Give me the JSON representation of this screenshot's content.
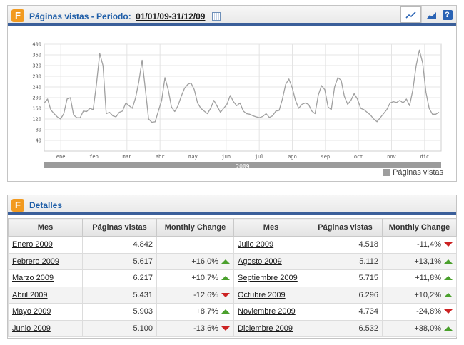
{
  "chart_panel": {
    "title": "Páginas vistas - Periodo:",
    "period": "01/01/09-31/12/09",
    "legend": "Páginas vistas"
  },
  "chart_data": {
    "type": "line",
    "title": "Páginas vistas - Periodo: 01/01/09-31/12/09",
    "series": [
      {
        "name": "Páginas vistas",
        "points": [
          [
            0,
            180
          ],
          [
            3,
            195
          ],
          [
            6,
            155
          ],
          [
            9,
            140
          ],
          [
            12,
            128
          ],
          [
            15,
            120
          ],
          [
            18,
            140
          ],
          [
            21,
            195
          ],
          [
            24,
            200
          ],
          [
            27,
            135
          ],
          [
            30,
            125
          ],
          [
            33,
            125
          ],
          [
            36,
            150
          ],
          [
            39,
            148
          ],
          [
            42,
            160
          ],
          [
            45,
            155
          ],
          [
            48,
            250
          ],
          [
            51,
            365
          ],
          [
            54,
            320
          ],
          [
            57,
            140
          ],
          [
            60,
            145
          ],
          [
            63,
            132
          ],
          [
            66,
            128
          ],
          [
            69,
            145
          ],
          [
            72,
            150
          ],
          [
            75,
            180
          ],
          [
            78,
            170
          ],
          [
            81,
            160
          ],
          [
            84,
            200
          ],
          [
            87,
            260
          ],
          [
            90,
            340
          ],
          [
            93,
            230
          ],
          [
            96,
            120
          ],
          [
            99,
            108
          ],
          [
            102,
            110
          ],
          [
            105,
            150
          ],
          [
            108,
            190
          ],
          [
            111,
            275
          ],
          [
            114,
            230
          ],
          [
            117,
            165
          ],
          [
            120,
            148
          ],
          [
            123,
            170
          ],
          [
            126,
            205
          ],
          [
            129,
            235
          ],
          [
            132,
            250
          ],
          [
            135,
            255
          ],
          [
            138,
            230
          ],
          [
            141,
            180
          ],
          [
            144,
            160
          ],
          [
            147,
            150
          ],
          [
            150,
            140
          ],
          [
            153,
            160
          ],
          [
            156,
            190
          ],
          [
            159,
            168
          ],
          [
            162,
            145
          ],
          [
            165,
            160
          ],
          [
            168,
            175
          ],
          [
            171,
            208
          ],
          [
            174,
            185
          ],
          [
            177,
            170
          ],
          [
            180,
            180
          ],
          [
            183,
            150
          ],
          [
            186,
            140
          ],
          [
            189,
            138
          ],
          [
            192,
            132
          ],
          [
            195,
            128
          ],
          [
            198,
            125
          ],
          [
            201,
            130
          ],
          [
            204,
            140
          ],
          [
            207,
            126
          ],
          [
            210,
            132
          ],
          [
            213,
            150
          ],
          [
            216,
            152
          ],
          [
            219,
            195
          ],
          [
            222,
            250
          ],
          [
            225,
            270
          ],
          [
            228,
            238
          ],
          [
            231,
            190
          ],
          [
            234,
            160
          ],
          [
            237,
            175
          ],
          [
            240,
            180
          ],
          [
            243,
            175
          ],
          [
            246,
            150
          ],
          [
            249,
            140
          ],
          [
            252,
            210
          ],
          [
            255,
            245
          ],
          [
            258,
            230
          ],
          [
            261,
            165
          ],
          [
            264,
            155
          ],
          [
            267,
            240
          ],
          [
            270,
            275
          ],
          [
            273,
            265
          ],
          [
            276,
            205
          ],
          [
            279,
            175
          ],
          [
            282,
            190
          ],
          [
            285,
            215
          ],
          [
            288,
            195
          ],
          [
            291,
            160
          ],
          [
            294,
            155
          ],
          [
            297,
            145
          ],
          [
            300,
            135
          ],
          [
            303,
            120
          ],
          [
            306,
            110
          ],
          [
            309,
            125
          ],
          [
            312,
            140
          ],
          [
            315,
            155
          ],
          [
            318,
            180
          ],
          [
            321,
            185
          ],
          [
            324,
            182
          ],
          [
            327,
            190
          ],
          [
            330,
            180
          ],
          [
            333,
            195
          ],
          [
            336,
            170
          ],
          [
            339,
            230
          ],
          [
            342,
            320
          ],
          [
            345,
            378
          ],
          [
            348,
            330
          ],
          [
            351,
            220
          ],
          [
            354,
            160
          ],
          [
            357,
            138
          ],
          [
            360,
            138
          ],
          [
            363,
            145
          ]
        ]
      }
    ],
    "x_ticks": [
      "ene",
      "feb",
      "mar",
      "abr",
      "may",
      "jun",
      "jul",
      "ago",
      "sep",
      "oct",
      "nov",
      "dic"
    ],
    "y_ticks": [
      40,
      80,
      120,
      160,
      200,
      240,
      280,
      320,
      360,
      400
    ],
    "ylim": [
      0,
      400
    ],
    "xlim": [
      0,
      365
    ],
    "year_label": "2009",
    "grid": true,
    "legend_position": "bottom-right",
    "line_color": "#a0a0a0"
  },
  "details": {
    "title": "Detalles",
    "headers": [
      "Mes",
      "Páginas vistas",
      "Monthly Change",
      "Mes",
      "Páginas vistas",
      "Monthly Change"
    ],
    "rows": [
      {
        "left": {
          "month": "Enero 2009",
          "views": "4.842",
          "change": "",
          "dir": ""
        },
        "right": {
          "month": "Julio 2009",
          "views": "4.518",
          "change": "-11,4%",
          "dir": "down"
        }
      },
      {
        "left": {
          "month": "Febrero 2009",
          "views": "5.617",
          "change": "+16,0%",
          "dir": "up"
        },
        "right": {
          "month": "Agosto 2009",
          "views": "5.112",
          "change": "+13,1%",
          "dir": "up"
        }
      },
      {
        "left": {
          "month": "Marzo 2009",
          "views": "6.217",
          "change": "+10,7%",
          "dir": "up"
        },
        "right": {
          "month": "Septiembre 2009",
          "views": "5.715",
          "change": "+11,8%",
          "dir": "up"
        }
      },
      {
        "left": {
          "month": "Abril 2009",
          "views": "5.431",
          "change": "-12,6%",
          "dir": "down"
        },
        "right": {
          "month": "Octubre 2009",
          "views": "6.296",
          "change": "+10,2%",
          "dir": "up"
        }
      },
      {
        "left": {
          "month": "Mayo 2009",
          "views": "5.903",
          "change": "+8,7%",
          "dir": "up"
        },
        "right": {
          "month": "Noviembre 2009",
          "views": "4.734",
          "change": "-24,8%",
          "dir": "down"
        }
      },
      {
        "left": {
          "month": "Junio 2009",
          "views": "5.100",
          "change": "-13,6%",
          "dir": "down"
        },
        "right": {
          "month": "Diciembre 2009",
          "views": "6.532",
          "change": "+38,0%",
          "dir": "up"
        }
      }
    ]
  },
  "colors": {
    "header_accent": "#3b5f9a",
    "title_blue": "#1f5ea8",
    "logo_orange": "#f29a1f",
    "up_green": "#4aa02c",
    "down_red": "#cc2222"
  },
  "toolbar": {
    "icons": [
      "line-chart-icon",
      "area-chart-icon",
      "help-icon"
    ],
    "help_label": "?"
  }
}
